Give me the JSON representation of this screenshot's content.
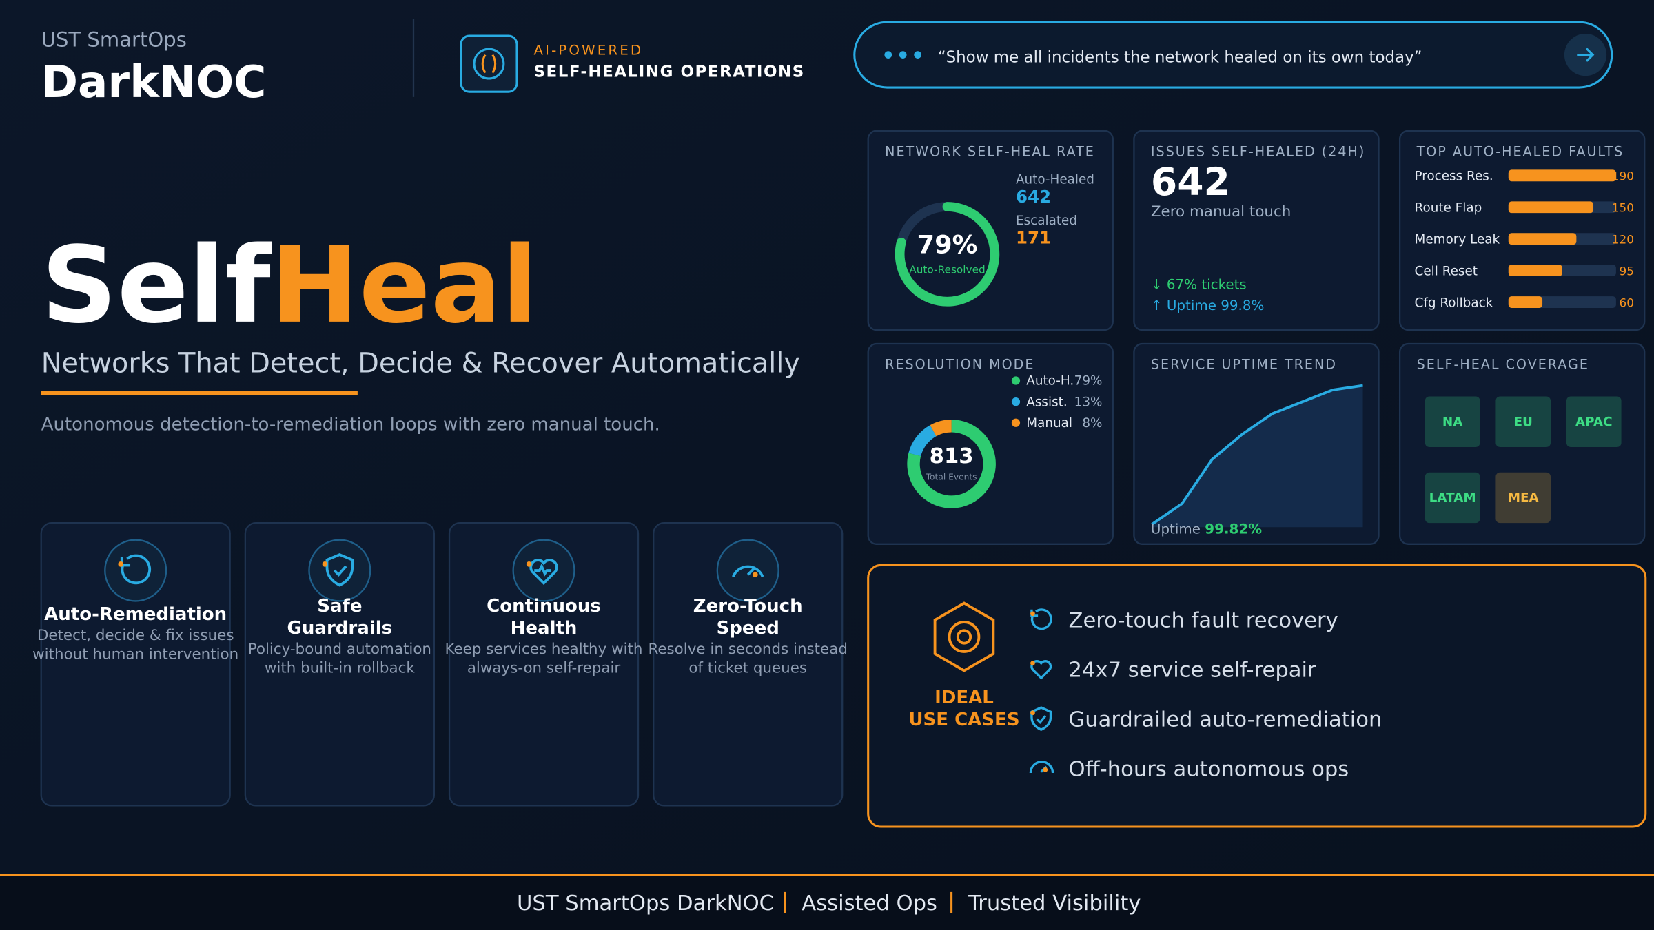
{
  "header": {
    "brand": "UST SmartOps",
    "product": "DarkNOC",
    "tag": "AI-POWERED",
    "tagline": "SELF-HEALING OPERATIONS",
    "query": "“Show me all incidents the network healed on its own today”"
  },
  "hero": {
    "title_a": "Self",
    "title_b": "Heal",
    "subtitle": "Networks That Detect, Decide & Recover Automatically",
    "description": "Autonomous detection-to-remediation loops with zero manual touch."
  },
  "features": [
    {
      "title": [
        "Auto-Remediation"
      ],
      "desc": [
        "Detect, decide & fix issues",
        "without human intervention"
      ]
    },
    {
      "title": [
        "Safe",
        "Guardrails"
      ],
      "desc": [
        "Policy-bound automation",
        "with built-in rollback"
      ]
    },
    {
      "title": [
        "Continuous",
        "Health"
      ],
      "desc": [
        "Keep services healthy with",
        "always-on self-repair"
      ]
    },
    {
      "title": [
        "Zero-Touch",
        "Speed"
      ],
      "desc": [
        "Resolve in seconds instead",
        "of ticket queues"
      ]
    }
  ],
  "kpis": {
    "self_heal_rate": {
      "title": "NETWORK SELF-HEAL RATE",
      "value": 79,
      "value_label": "79%",
      "caption": "Auto-Resolved",
      "items": [
        {
          "label": "Auto-Healed",
          "value": 642
        },
        {
          "label": "Escalated",
          "value": 171
        }
      ]
    },
    "issues": {
      "title": "ISSUES SELF-HEALED (24H)",
      "value": 642,
      "caption": "Zero manual touch",
      "notes": [
        "↓ 67% tickets",
        "↑ Uptime 99.8%"
      ]
    },
    "faults": {
      "title": "TOP AUTO-HEALED FAULTS",
      "chart_data": {
        "type": "bar",
        "categories": [
          "Process Res.",
          "Route Flap",
          "Memory Leak",
          "Cell Reset",
          "Cfg Rollback"
        ],
        "values": [
          190,
          150,
          120,
          95,
          60
        ],
        "xlim": [
          0,
          190
        ],
        "color": "#f7931e"
      }
    },
    "resolution": {
      "title": "RESOLUTION MODE",
      "chart_data": {
        "type": "pie",
        "categories": [
          "Auto-H.",
          "Assist.",
          "Manual"
        ],
        "values": [
          79,
          13,
          8
        ],
        "value_labels": [
          "79%",
          "13%",
          "8%"
        ],
        "colors": [
          "#2ecc71",
          "#29abe2",
          "#f7931e"
        ],
        "total": 813,
        "total_label": "Total Events"
      }
    },
    "uptime": {
      "title": "SERVICE UPTIME TREND",
      "chart_data": {
        "type": "area",
        "values": [
          2,
          16,
          46,
          63,
          77,
          85,
          93,
          96
        ],
        "ylim": [
          0,
          100
        ],
        "color": "#29abe2"
      },
      "label": "Uptime",
      "value": "99.82%"
    },
    "coverage": {
      "title": "SELF-HEAL COVERAGE",
      "regions": [
        {
          "name": "NA",
          "color": "#3ddc84"
        },
        {
          "name": "EU",
          "color": "#3ddc84"
        },
        {
          "name": "APAC",
          "color": "#3ddc84"
        },
        {
          "name": "LATAM",
          "color": "#3ddc84"
        },
        {
          "name": "MEA",
          "color": "#f5b942"
        }
      ]
    }
  },
  "use_cases": {
    "title": [
      "IDEAL",
      "USE CASES"
    ],
    "items": [
      "Zero-touch fault recovery",
      "24x7 service self-repair",
      "Guardrailed auto-remediation",
      "Off-hours autonomous ops"
    ]
  },
  "footer": [
    "UST SmartOps DarkNOC",
    "Assisted Ops",
    "Trusted Visibility"
  ]
}
